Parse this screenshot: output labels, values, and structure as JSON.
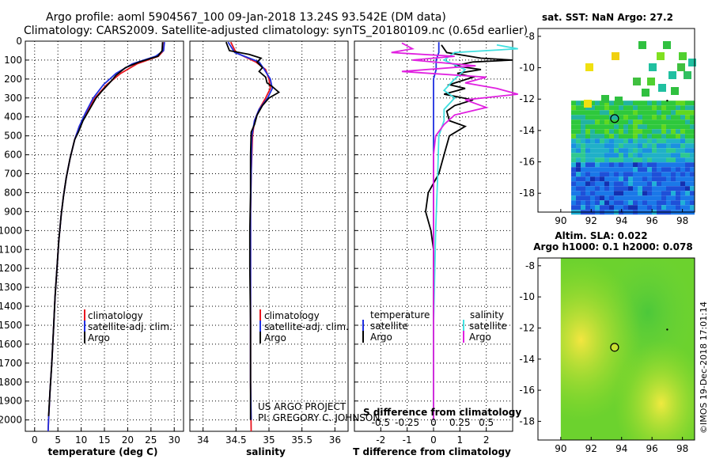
{
  "title_line1": "Argo profile: aoml 5904567_100 09-Jan-2018 13.24S 93.542E (DM data)",
  "title_line2": "Climatology: CARS2009. Satellite-adjusted climatology: synTS_20180109.nc (0.65d earlier)",
  "colors": {
    "climatology": "#e8141e",
    "satellite": "#1e2ee0",
    "argo": "#000000",
    "sal_satellite": "#40e0e0",
    "sal_argo": "#e020e0"
  },
  "depth_axis": {
    "ticks": [
      0,
      100,
      200,
      300,
      400,
      500,
      600,
      700,
      800,
      900,
      1000,
      1100,
      1200,
      1300,
      1400,
      1500,
      1600,
      1700,
      1800,
      1900,
      2000
    ],
    "range": [
      0,
      2060
    ]
  },
  "chart_data": [
    {
      "type": "line",
      "name": "temperature-profile",
      "xlabel": "temperature (deg C)",
      "xlim": [
        -2,
        32
      ],
      "xticks": [
        0,
        5,
        10,
        15,
        20,
        25,
        30
      ],
      "legend": {
        "climatology": "climatology",
        "satellite": "satellite-adj. clim.",
        "argo": "Argo"
      },
      "series": [
        {
          "name": "climatology",
          "color": "#e8141e",
          "points": [
            [
              27.8,
              5
            ],
            [
              27.7,
              50
            ],
            [
              26.6,
              80
            ],
            [
              22,
              120
            ],
            [
              18.5,
              170
            ],
            [
              15.5,
              230
            ],
            [
              13,
              300
            ],
            [
              11,
              380
            ],
            [
              9.6,
              450
            ],
            [
              8.6,
              520
            ],
            [
              7.6,
              620
            ],
            [
              6.8,
              720
            ],
            [
              6.2,
              820
            ],
            [
              5.7,
              920
            ],
            [
              5.2,
              1050
            ],
            [
              4.8,
              1200
            ],
            [
              4.4,
              1350
            ],
            [
              4.1,
              1500
            ],
            [
              3.7,
              1700
            ],
            [
              3.3,
              1850
            ],
            [
              3,
              2000
            ],
            [
              2.9,
              2060
            ]
          ]
        },
        {
          "name": "satellite",
          "color": "#1e2ee0",
          "points": [
            [
              27.9,
              5
            ],
            [
              27.7,
              50
            ],
            [
              26,
              80
            ],
            [
              21,
              120
            ],
            [
              17.5,
              170
            ],
            [
              14.8,
              230
            ],
            [
              12.6,
              300
            ],
            [
              10.9,
              380
            ],
            [
              9.6,
              450
            ],
            [
              8.6,
              520
            ],
            [
              7.6,
              620
            ],
            [
              6.8,
              720
            ],
            [
              6.2,
              820
            ],
            [
              5.7,
              920
            ],
            [
              5.2,
              1050
            ],
            [
              4.8,
              1200
            ],
            [
              4.4,
              1350
            ],
            [
              4.1,
              1500
            ],
            [
              3.7,
              1700
            ],
            [
              3.3,
              1850
            ],
            [
              3,
              2000
            ],
            [
              2.9,
              2060
            ]
          ]
        },
        {
          "name": "argo",
          "color": "#000000",
          "points": [
            [
              27.5,
              5
            ],
            [
              27.4,
              50
            ],
            [
              26.5,
              80
            ],
            [
              22.5,
              110
            ],
            [
              19.5,
              140
            ],
            [
              17.5,
              180
            ],
            [
              16.5,
              210
            ],
            [
              14.6,
              260
            ],
            [
              13.2,
              300
            ],
            [
              11.8,
              360
            ],
            [
              10.4,
              420
            ],
            [
              9.4,
              480
            ],
            [
              8.6,
              520
            ],
            [
              7.6,
              620
            ],
            [
              6.8,
              720
            ],
            [
              6.2,
              820
            ],
            [
              5.7,
              920
            ],
            [
              5.2,
              1050
            ],
            [
              4.8,
              1200
            ],
            [
              4.4,
              1350
            ],
            [
              4.1,
              1500
            ],
            [
              3.7,
              1700
            ],
            [
              3.3,
              1850
            ],
            [
              3,
              1980
            ]
          ]
        }
      ]
    },
    {
      "type": "line",
      "name": "salinity-profile",
      "xlabel": "salinity",
      "xlim": [
        33.8,
        36.2
      ],
      "xticks": [
        34,
        34.5,
        35,
        35.5,
        36
      ],
      "xticklabels": [
        "34",
        "34.5",
        "35",
        "35.5",
        "36"
      ],
      "legend": {
        "climatology": "climatology",
        "satellite": "satellite-adj. clim.",
        "argo": "Argo"
      },
      "series": [
        {
          "name": "climatology",
          "color": "#e8141e",
          "points": [
            [
              34.42,
              5
            ],
            [
              34.5,
              60
            ],
            [
              34.8,
              110
            ],
            [
              34.95,
              150
            ],
            [
              35,
              200
            ],
            [
              35.02,
              250
            ],
            [
              34.95,
              300
            ],
            [
              34.85,
              360
            ],
            [
              34.78,
              420
            ],
            [
              34.75,
              500
            ],
            [
              34.73,
              700
            ],
            [
              34.72,
              900
            ],
            [
              34.72,
              1200
            ],
            [
              34.72,
              1500
            ],
            [
              34.72,
              1800
            ],
            [
              34.73,
              2060
            ]
          ]
        },
        {
          "name": "satellite",
          "color": "#1e2ee0",
          "points": [
            [
              34.38,
              5
            ],
            [
              34.48,
              60
            ],
            [
              34.85,
              110
            ],
            [
              34.93,
              150
            ],
            [
              35.02,
              200
            ],
            [
              35.05,
              250
            ],
            [
              34.98,
              300
            ],
            [
              34.85,
              360
            ],
            [
              34.78,
              420
            ],
            [
              34.74,
              500
            ],
            [
              34.73,
              700
            ],
            [
              34.72,
              900
            ],
            [
              34.72,
              1200
            ],
            [
              34.72,
              1500
            ],
            [
              34.72,
              1800
            ],
            [
              34.73,
              2000
            ]
          ]
        },
        {
          "name": "argo",
          "color": "#000000",
          "points": [
            [
              34.35,
              5
            ],
            [
              34.4,
              50
            ],
            [
              34.7,
              70
            ],
            [
              34.88,
              90
            ],
            [
              34.82,
              110
            ],
            [
              34.9,
              140
            ],
            [
              34.85,
              160
            ],
            [
              34.95,
              190
            ],
            [
              34.97,
              220
            ],
            [
              35.05,
              240
            ],
            [
              35.15,
              270
            ],
            [
              35,
              300
            ],
            [
              34.9,
              340
            ],
            [
              34.82,
              390
            ],
            [
              34.78,
              440
            ],
            [
              34.73,
              480
            ],
            [
              34.72,
              600
            ],
            [
              34.72,
              800
            ],
            [
              34.71,
              1000
            ],
            [
              34.71,
              1200
            ],
            [
              34.72,
              1500
            ],
            [
              34.72,
              1800
            ],
            [
              34.72,
              2000
            ]
          ]
        }
      ]
    },
    {
      "type": "line",
      "name": "difference-profile",
      "xlabel": "T difference from climatology",
      "xlabel_top": "S difference from climatology",
      "xlim": [
        -3,
        3
      ],
      "xticks": [
        -2,
        -1,
        0,
        1,
        2
      ],
      "sticks": [
        -0.5,
        -0.25,
        0,
        0.25,
        0.5
      ],
      "sticklabels": [
        "-0.5",
        "-0.25",
        "0",
        "0.25",
        "0.5"
      ],
      "legend": {
        "temperature": "temperature",
        "salinity": "salinity",
        "t_satellite": "satellite",
        "t_argo": "Argo",
        "s_satellite": "satellite",
        "s_argo": "Argo"
      },
      "series": [
        {
          "name": "T satellite",
          "color": "#1e2ee0",
          "points": [
            [
              0.2,
              5
            ],
            [
              0.2,
              60
            ],
            [
              0.1,
              100
            ],
            [
              0.1,
              150
            ],
            [
              0,
              200
            ],
            [
              0,
              300
            ],
            [
              0,
              400
            ],
            [
              0,
              500
            ],
            [
              0,
              700
            ],
            [
              0,
              1000
            ],
            [
              0,
              1500
            ],
            [
              0,
              2000
            ]
          ]
        },
        {
          "name": "T argo",
          "color": "#000000",
          "points": [
            [
              0.3,
              20
            ],
            [
              0.5,
              60
            ],
            [
              1.8,
              90
            ],
            [
              3,
              100
            ],
            [
              1.5,
              110
            ],
            [
              0.8,
              130
            ],
            [
              1.8,
              150
            ],
            [
              0.9,
              170
            ],
            [
              1.5,
              190
            ],
            [
              0.6,
              230
            ],
            [
              1.2,
              250
            ],
            [
              0.4,
              280
            ],
            [
              1.5,
              310
            ],
            [
              0.8,
              340
            ],
            [
              0.5,
              370
            ],
            [
              0.6,
              420
            ],
            [
              1.2,
              450
            ],
            [
              0.6,
              500
            ],
            [
              0.4,
              600
            ],
            [
              0.2,
              700
            ],
            [
              -0.2,
              800
            ],
            [
              -0.3,
              900
            ],
            [
              -0.1,
              1000
            ],
            [
              0,
              1100
            ],
            [
              0,
              1300
            ],
            [
              0,
              1600
            ],
            [
              0,
              1800
            ],
            [
              0,
              2000
            ]
          ]
        },
        {
          "name": "S satellite",
          "color": "#40e0e0",
          "points": [
            [
              0.6,
              20
            ],
            [
              0.8,
              40
            ],
            [
              0.2,
              60
            ],
            [
              0.1,
              100
            ],
            [
              0.3,
              150
            ],
            [
              0.2,
              200
            ],
            [
              0.1,
              260
            ],
            [
              0.2,
              300
            ],
            [
              0.1,
              360
            ],
            [
              0.1,
              420
            ],
            [
              0.05,
              500
            ],
            [
              0.04,
              700
            ],
            [
              0.02,
              1000
            ],
            [
              0,
              1500
            ],
            [
              0,
              2000
            ]
          ]
        },
        {
          "name": "S argo",
          "color": "#e020e0",
          "points": [
            [
              -0.3,
              10
            ],
            [
              -0.2,
              40
            ],
            [
              -0.4,
              60
            ],
            [
              0.2,
              80
            ],
            [
              -0.2,
              100
            ],
            [
              0.4,
              130
            ],
            [
              -0.3,
              160
            ],
            [
              0.5,
              190
            ],
            [
              0.3,
              220
            ],
            [
              0.6,
              250
            ],
            [
              0.8,
              280
            ],
            [
              0.3,
              310
            ],
            [
              0.5,
              350
            ],
            [
              0.2,
              390
            ],
            [
              0.1,
              440
            ],
            [
              0.02,
              500
            ],
            [
              0,
              600
            ],
            [
              0,
              800
            ],
            [
              0,
              1100
            ],
            [
              0,
              1500
            ],
            [
              0,
              1800
            ],
            [
              0,
              2000
            ]
          ]
        }
      ]
    }
  ],
  "credits": {
    "line1": "US ARGO PROJECT",
    "line2": "PI: GREGORY C. JOHNSON"
  },
  "sst_map": {
    "title": "sat. SST: NaN Argo: 27.2",
    "xticks": [
      90,
      92,
      94,
      96,
      98
    ],
    "yticks": [
      -8,
      -10,
      -12,
      -14,
      -16,
      -18
    ],
    "xlim": [
      88.5,
      98.8
    ],
    "ylim": [
      -19.2,
      -7.5
    ],
    "argo_position": [
      93.54,
      -13.24
    ]
  },
  "sla_map": {
    "title1": "Altim. SLA: 0.022",
    "title2": "Argo h1000: 0.1 h2000: 0.078",
    "xticks": [
      90,
      92,
      94,
      96,
      98
    ],
    "yticks": [
      -8,
      -10,
      -12,
      -14,
      -16,
      -18
    ],
    "xlim": [
      88.5,
      98.8
    ],
    "ylim": [
      -19.2,
      -7.5
    ],
    "argo_position": [
      93.54,
      -13.24
    ]
  },
  "timestamp": "©IMOS 19-Dec-2018 17:01:14"
}
